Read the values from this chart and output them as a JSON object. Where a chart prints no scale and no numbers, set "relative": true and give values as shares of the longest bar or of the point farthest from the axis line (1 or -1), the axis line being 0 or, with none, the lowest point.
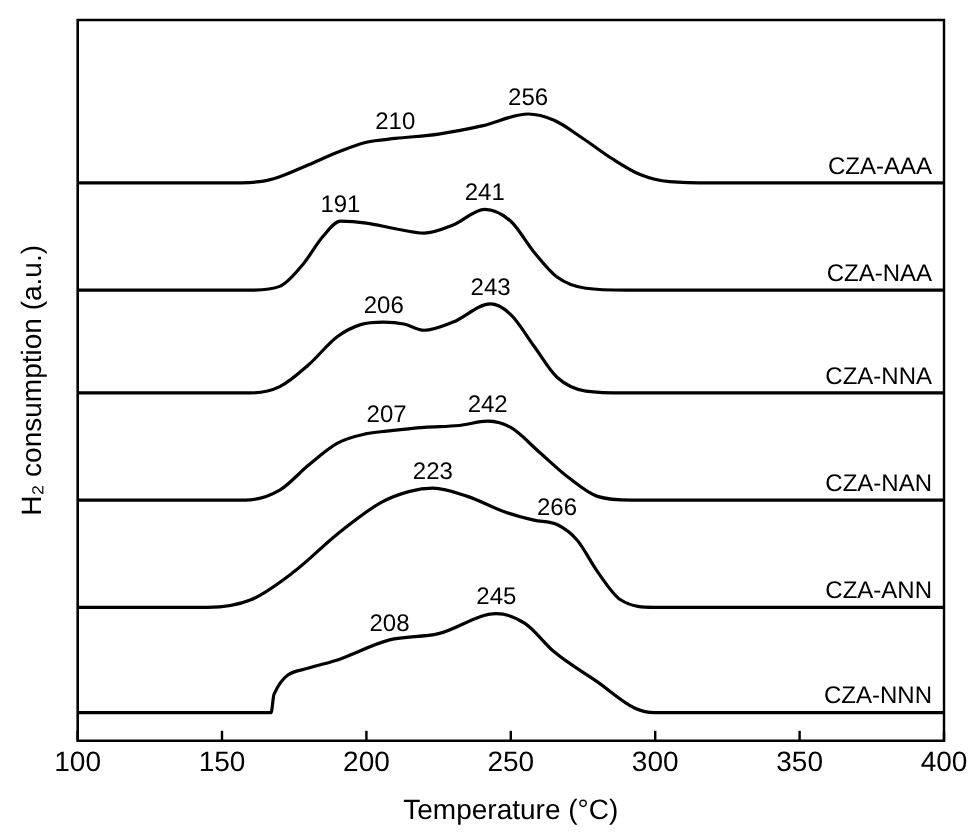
{
  "chart_data": {
    "type": "line",
    "relative": true,
    "xlabel": "Temperature (°C)",
    "ylabel": "H₂ consumption (a.u.)",
    "xlim": [
      100,
      400
    ],
    "xticks": [
      100,
      150,
      200,
      250,
      300,
      350,
      400
    ],
    "grid": false,
    "legend": false,
    "marker": "none",
    "line_style": "solid",
    "series": [
      {
        "name": "CZA-AAA",
        "color": "#000000",
        "x": [
          100,
          150,
          163,
          170,
          180,
          190,
          200,
          210,
          225,
          240,
          256,
          265,
          275,
          285,
          295,
          305,
          320,
          400
        ],
        "values": [
          0.89,
          0.89,
          0.892,
          0.9,
          0.919,
          0.939,
          0.955,
          0.961,
          0.968,
          0.981,
          1,
          0.99,
          0.961,
          0.929,
          0.903,
          0.892,
          0.89,
          0.89
        ]
      },
      {
        "name": "CZA-NAA",
        "color": "#000000",
        "x": [
          100,
          160,
          170,
          178,
          185,
          191,
          200,
          210,
          220,
          230,
          241,
          250,
          258,
          266,
          276,
          290,
          400
        ],
        "values": [
          0.719,
          0.719,
          0.725,
          0.76,
          0.805,
          0.829,
          0.826,
          0.817,
          0.81,
          0.823,
          0.848,
          0.829,
          0.78,
          0.74,
          0.722,
          0.719,
          0.719
        ]
      },
      {
        "name": "CZA-NNA",
        "color": "#000000",
        "x": [
          100,
          160,
          170,
          180,
          190,
          198,
          206,
          213,
          220,
          230,
          243,
          250,
          258,
          266,
          276,
          290,
          400
        ],
        "values": [
          0.555,
          0.555,
          0.565,
          0.6,
          0.645,
          0.664,
          0.668,
          0.665,
          0.655,
          0.668,
          0.697,
          0.68,
          0.63,
          0.58,
          0.558,
          0.555,
          0.555
        ]
      },
      {
        "name": "CZA-NAN",
        "color": "#000000",
        "x": [
          100,
          158,
          170,
          180,
          190,
          200,
          207,
          220,
          232,
          242,
          250,
          260,
          270,
          280,
          292,
          400
        ],
        "values": [
          0.384,
          0.384,
          0.4,
          0.44,
          0.475,
          0.49,
          0.494,
          0.5,
          0.503,
          0.51,
          0.5,
          0.46,
          0.42,
          0.39,
          0.384,
          0.384
        ]
      },
      {
        "name": "CZA-ANN",
        "color": "#000000",
        "x": [
          100,
          145,
          160,
          175,
          190,
          205,
          215,
          223,
          235,
          248,
          258,
          266,
          273,
          280,
          288,
          300,
          400
        ],
        "values": [
          0.213,
          0.213,
          0.225,
          0.27,
          0.33,
          0.38,
          0.398,
          0.403,
          0.39,
          0.365,
          0.352,
          0.345,
          0.32,
          0.27,
          0.225,
          0.213,
          0.213
        ]
      },
      {
        "name": "CZA-NNN",
        "color": "#000000",
        "x": [
          100,
          150,
          167,
          168,
          180,
          190,
          208,
          225,
          245,
          255,
          265,
          280,
          293,
          300,
          400
        ],
        "values": [
          0.045,
          0.045,
          0.045,
          0.074,
          0.116,
          0.129,
          0.161,
          0.171,
          0.203,
          0.187,
          0.142,
          0.094,
          0.052,
          0.045,
          0.045
        ]
      }
    ],
    "annotations": [
      {
        "text": "210",
        "x": 210,
        "y": 0.961
      },
      {
        "text": "256",
        "x": 256,
        "y": 1
      },
      {
        "text": "191",
        "x": 191,
        "y": 0.829
      },
      {
        "text": "241",
        "x": 241,
        "y": 0.848
      },
      {
        "text": "206",
        "x": 206,
        "y": 0.668
      },
      {
        "text": "243",
        "x": 243,
        "y": 0.697
      },
      {
        "text": "207",
        "x": 207,
        "y": 0.494
      },
      {
        "text": "242",
        "x": 242,
        "y": 0.51
      },
      {
        "text": "223",
        "x": 223,
        "y": 0.403
      },
      {
        "text": "266",
        "x": 266,
        "y": 0.345
      },
      {
        "text": "208",
        "x": 208,
        "y": 0.161
      },
      {
        "text": "245",
        "x": 245,
        "y": 0.203
      }
    ]
  }
}
